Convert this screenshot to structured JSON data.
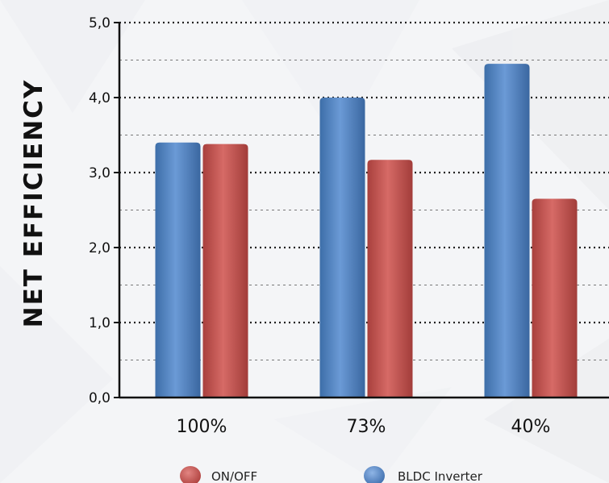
{
  "chart_data": {
    "type": "bar",
    "categories": [
      "100%",
      "73%",
      "40%"
    ],
    "series": [
      {
        "name": "BLDC Inverter",
        "values": [
          3.4,
          4.0,
          4.45
        ],
        "color": "#4f81bd"
      },
      {
        "name": "ON/OFF",
        "values": [
          3.38,
          3.17,
          2.65
        ],
        "color": "#c0504d"
      }
    ],
    "ylabel": "NET EFFICIENCY",
    "xlabel": "",
    "ylim": [
      0,
      5
    ],
    "yticks": [
      "0,0",
      "1,0",
      "2,0",
      "3,0",
      "4,0",
      "5,0"
    ],
    "grid": true,
    "legend_position": "bottom",
    "legend": [
      {
        "label": "ON/OFF",
        "color": "#c0504d"
      },
      {
        "label": "BLDC Inverter",
        "color": "#4f81bd"
      }
    ]
  }
}
